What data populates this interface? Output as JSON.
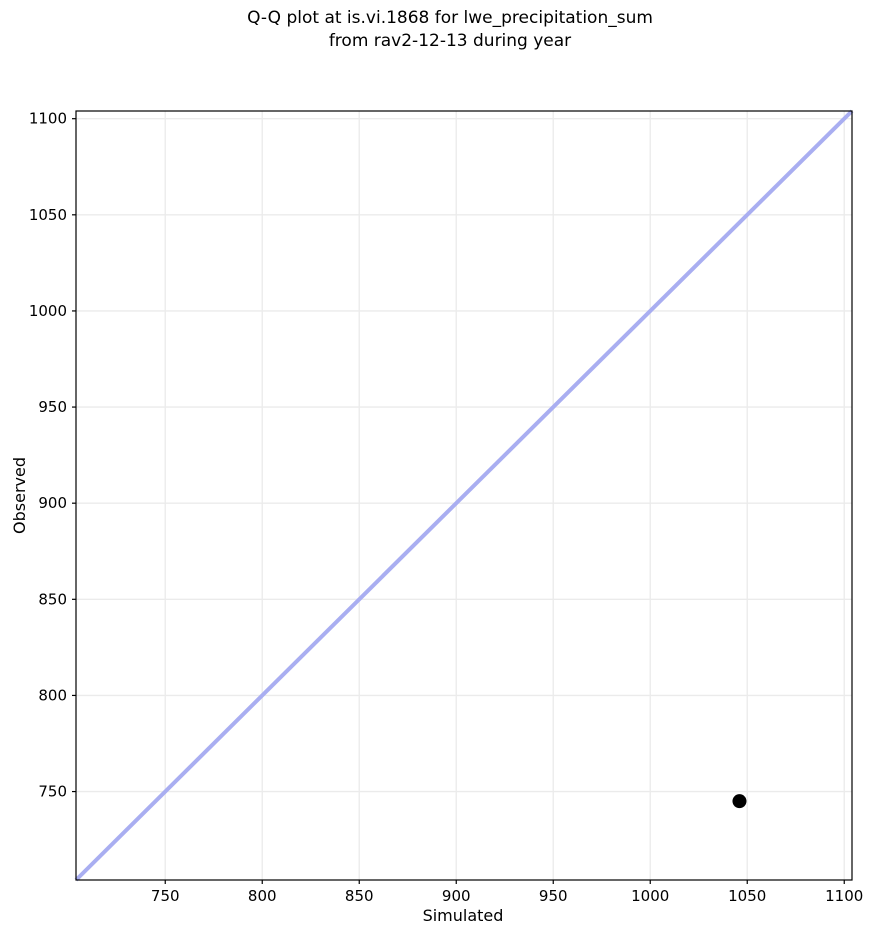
{
  "chart_data": {
    "type": "scatter",
    "title": "Q-Q plot at is.vi.1868 for lwe_precipitation_sum\nfrom rav2-12-13 during year",
    "title_lines": [
      "Q-Q plot at is.vi.1868 for lwe_precipitation_sum",
      "from rav2-12-13 during year"
    ],
    "xlabel": "Simulated",
    "ylabel": "Observed",
    "xlim": [
      704,
      1104
    ],
    "ylim": [
      704,
      1104
    ],
    "xticks": [
      750,
      800,
      850,
      900,
      950,
      1000,
      1050,
      1100
    ],
    "yticks": [
      750,
      800,
      850,
      900,
      950,
      1000,
      1050,
      1100
    ],
    "grid": true,
    "legend": false,
    "points": [
      {
        "x": 1046,
        "y": 745
      }
    ],
    "identity_line": {
      "x1": 704,
      "y1": 704,
      "x2": 1104,
      "y2": 1104
    },
    "colors": {
      "identity_line": "#a9aef1",
      "point": "#000000",
      "grid": "#ebebeb",
      "spine": "#000000",
      "text": "#000000",
      "background": "#ffffff"
    },
    "style": {
      "identity_line_width": 4,
      "point_radius": 7,
      "tick_length": 4
    }
  }
}
